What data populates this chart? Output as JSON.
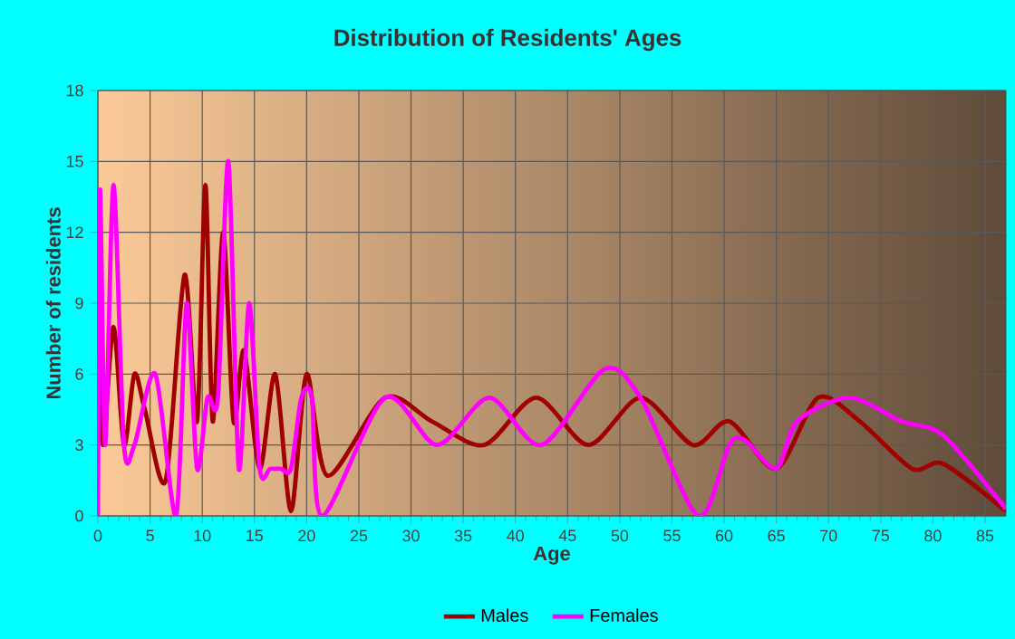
{
  "chart_data": {
    "type": "line",
    "title": "Distribution of Residents' Ages",
    "xlabel": "Age",
    "ylabel": "Number of residents",
    "xlim": [
      0,
      87
    ],
    "ylim": [
      0,
      18
    ],
    "xticks": [
      0,
      5,
      10,
      15,
      20,
      25,
      30,
      35,
      40,
      45,
      50,
      55,
      60,
      65,
      70,
      75,
      80,
      85
    ],
    "yticks": [
      0,
      3,
      6,
      9,
      12,
      15,
      18
    ],
    "grid": true,
    "legend": "bottom",
    "marker": "none",
    "line_style": "solid",
    "series": [
      {
        "name": "Males",
        "color": "#a00000",
        "x": [
          0,
          0.2,
          0.5,
          1.5,
          2.5,
          3.5,
          4.5,
          6.5,
          8.3,
          9.5,
          10.3,
          11,
          12,
          13,
          14,
          15.5,
          17,
          18.5,
          20,
          22,
          27.5,
          32,
          37,
          42,
          47,
          52,
          57,
          60.5,
          65,
          69,
          73,
          78,
          81,
          87
        ],
        "values": [
          3,
          8,
          3,
          8,
          3,
          6,
          4.5,
          1.5,
          10.2,
          4,
          14,
          4,
          12,
          4,
          7,
          2,
          6,
          0.2,
          6,
          1.7,
          5,
          4,
          3,
          5,
          3,
          5,
          3,
          4,
          2,
          5,
          4,
          2,
          2.2,
          0.2
        ]
      },
      {
        "name": "Females",
        "color": "#ff00ff",
        "x": [
          0,
          0.2,
          0.7,
          1.5,
          2.5,
          3.5,
          5.5,
          7.5,
          8.5,
          9.5,
          10.5,
          11.5,
          12.5,
          13.5,
          14.5,
          15.5,
          16.5,
          17.5,
          18.5,
          19.5,
          20.5,
          21.5,
          27.5,
          32.5,
          37.5,
          42.5,
          48.5,
          52,
          57.5,
          60.5,
          62,
          65,
          67,
          72,
          77,
          81,
          87
        ],
        "values": [
          0,
          13.8,
          3,
          14,
          3,
          3,
          6,
          0,
          9,
          2,
          5,
          5,
          15,
          2,
          9,
          2,
          2,
          2,
          2,
          5,
          5,
          0,
          5,
          3,
          5,
          3,
          6.2,
          5,
          0,
          3,
          3.2,
          2,
          4,
          5,
          4,
          3.4,
          0.3
        ]
      }
    ]
  }
}
